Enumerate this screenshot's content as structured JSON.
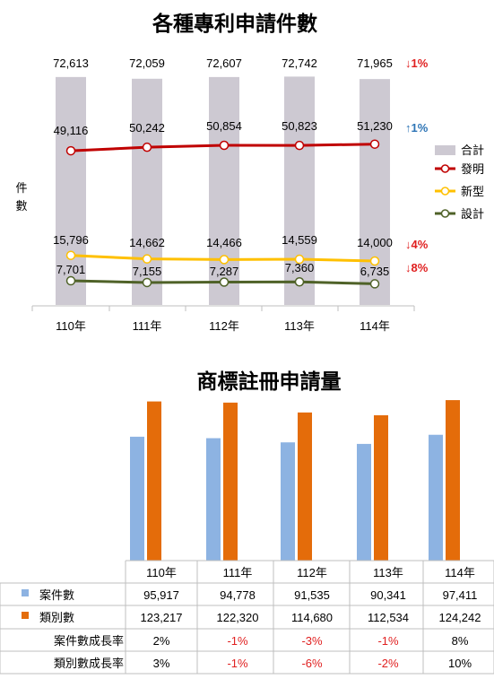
{
  "chart_data": [
    {
      "type": "bar",
      "title": "各種專利申請件數",
      "ylabel": "件數",
      "categories": [
        "110年",
        "111年",
        "112年",
        "113年",
        "114年"
      ],
      "series": [
        {
          "name": "合計",
          "type": "bar",
          "values": [
            72613,
            72059,
            72607,
            72742,
            71965
          ],
          "labels": [
            "72,613",
            "72,059",
            "72,607",
            "72,742",
            "71,965"
          ],
          "color": "#cdc9d2"
        },
        {
          "name": "發明",
          "type": "line",
          "values": [
            49116,
            50242,
            50854,
            50823,
            51230
          ],
          "labels": [
            "49,116",
            "50,242",
            "50,854",
            "50,823",
            "51,230"
          ],
          "color": "#c00000"
        },
        {
          "name": "新型",
          "type": "line",
          "values": [
            15796,
            14662,
            14466,
            14559,
            14000
          ],
          "labels": [
            "15,796",
            "14,662",
            "14,466",
            "14,559",
            "14,000"
          ],
          "color": "#ffc000"
        },
        {
          "name": "設計",
          "type": "line",
          "values": [
            7701,
            7155,
            7287,
            7360,
            6735
          ],
          "labels": [
            "7,701",
            "7,155",
            "7,287",
            "7,360",
            "6,735"
          ],
          "color": "#4f6228"
        }
      ],
      "annotations": [
        {
          "series": "合計",
          "text": "↓1%",
          "color": "#e02020"
        },
        {
          "series": "發明",
          "text": "↑1%",
          "color": "#2e75b6"
        },
        {
          "series": "新型",
          "text": "↓4%",
          "color": "#e02020"
        },
        {
          "series": "設計",
          "text": "↓8%",
          "color": "#e02020"
        }
      ],
      "legend": "right"
    },
    {
      "type": "bar",
      "title": "商標註冊申請量",
      "categories": [
        "110年",
        "111年",
        "112年",
        "113年",
        "114年"
      ],
      "series": [
        {
          "name": "案件數",
          "values": [
            95917,
            94778,
            91535,
            90341,
            97411
          ],
          "color": "#8db3e2"
        },
        {
          "name": "類別數",
          "values": [
            123217,
            122320,
            114680,
            112534,
            124242
          ],
          "color": "#e46c0a"
        }
      ],
      "table": {
        "rows": [
          {
            "label": "案件數",
            "marker": "#8db3e2",
            "cells": [
              "95,917",
              "94,778",
              "91,535",
              "90,341",
              "97,411"
            ]
          },
          {
            "label": "類別數",
            "marker": "#e46c0a",
            "cells": [
              "123,217",
              "122,320",
              "114,680",
              "112,534",
              "124,242"
            ]
          },
          {
            "label": "案件數成長率",
            "cells": [
              "2%",
              "-1%",
              "-3%",
              "-1%",
              "8%"
            ],
            "colors": [
              "#000000",
              "#e02020",
              "#e02020",
              "#e02020",
              "#000000"
            ]
          },
          {
            "label": "類別數成長率",
            "cells": [
              "3%",
              "-1%",
              "-6%",
              "-2%",
              "10%"
            ],
            "colors": [
              "#000000",
              "#e02020",
              "#e02020",
              "#e02020",
              "#000000"
            ]
          }
        ]
      }
    }
  ]
}
